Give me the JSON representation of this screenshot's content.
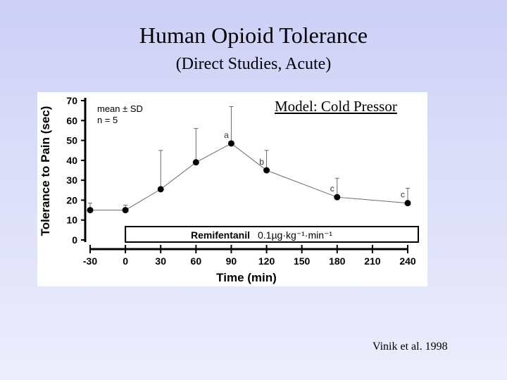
{
  "slide": {
    "title": "Human Opioid Tolerance",
    "subtitle": "(Direct Studies, Acute)",
    "citation": "Vinik et al. 1998"
  },
  "chart_data": {
    "type": "line",
    "xlabel": "Time (min)",
    "ylabel": "Tolerance to Pain (sec)",
    "xlim": [
      -30,
      240
    ],
    "ylim": [
      0,
      70
    ],
    "x_ticks": [
      -30,
      0,
      30,
      60,
      90,
      120,
      150,
      180,
      210,
      240
    ],
    "y_ticks": [
      0,
      10,
      20,
      30,
      40,
      50,
      60,
      70
    ],
    "grid": false,
    "legend_text": [
      "mean ± SD",
      "n = 5"
    ],
    "model_label": "Model: Cold Pressor",
    "infusion_bar": {
      "label_drug": "Remifentanil",
      "label_dose": "0.1µg·kg⁻¹·min⁻¹",
      "x_start": 0,
      "x_end": 240
    },
    "series": [
      {
        "x": [
          -30,
          0,
          30,
          60,
          90,
          120,
          180,
          240
        ],
        "y": [
          15,
          15,
          25.5,
          39,
          48.5,
          35,
          21.5,
          18.5
        ],
        "sd_upper": [
          18.5,
          17.5,
          45,
          56,
          67,
          45,
          31,
          26
        ],
        "annotations": [
          "",
          "",
          "",
          "",
          "a",
          "b",
          "c",
          "c"
        ]
      }
    ],
    "marker_color": "#000000",
    "line_color": "#6a6a6a"
  }
}
